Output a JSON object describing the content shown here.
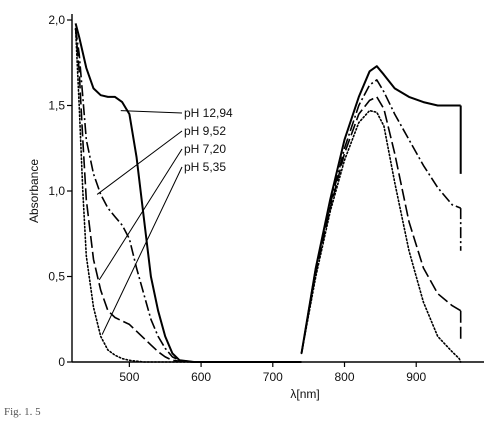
{
  "chart_data": {
    "type": "line",
    "title": "",
    "caption_text": "Fig. 1. 5",
    "xlabel": "λ[nm]",
    "ylabel": "Absorbance",
    "xlim": [
      420,
      975
    ],
    "ylim": [
      0,
      2.0
    ],
    "x_ticks": [
      500,
      600,
      700,
      800,
      900
    ],
    "x_tick_labels": [
      "500",
      "600",
      "700",
      "800",
      "900"
    ],
    "y_ticks": [
      0,
      0.5,
      1.0,
      1.5,
      2.0
    ],
    "y_tick_labels": [
      "0",
      "0,5",
      "1,0",
      "1,5",
      "2,0"
    ],
    "grid": false,
    "legend_position": "center-left, leader lines to curves",
    "series": [
      {
        "name": "pH 12,94",
        "dash": "solid",
        "width": 2.0,
        "segments": [
          [
            [
              425,
              1.98
            ],
            [
              430,
              1.9
            ],
            [
              440,
              1.72
            ],
            [
              450,
              1.6
            ],
            [
              460,
              1.56
            ],
            [
              470,
              1.55
            ],
            [
              480,
              1.55
            ],
            [
              490,
              1.52
            ],
            [
              500,
              1.45
            ],
            [
              510,
              1.2
            ],
            [
              520,
              0.85
            ],
            [
              530,
              0.5
            ],
            [
              540,
              0.3
            ],
            [
              550,
              0.15
            ],
            [
              560,
              0.05
            ],
            [
              570,
              0.01
            ],
            [
              590,
              0
            ],
            [
              740,
              0
            ]
          ],
          [
            [
              740,
              0.05
            ],
            [
              760,
              0.55
            ],
            [
              780,
              0.95
            ],
            [
              800,
              1.3
            ],
            [
              820,
              1.55
            ],
            [
              835,
              1.7
            ],
            [
              845,
              1.73
            ],
            [
              855,
              1.68
            ],
            [
              870,
              1.6
            ],
            [
              890,
              1.55
            ],
            [
              910,
              1.52
            ],
            [
              930,
              1.5
            ],
            [
              950,
              1.5
            ],
            [
              962,
              1.5
            ]
          ],
          [
            [
              962,
              1.5
            ],
            [
              962,
              1.1
            ]
          ]
        ]
      },
      {
        "name": "pH 9,52",
        "dash": "long-dash-dot",
        "width": 1.6,
        "segments": [
          [
            [
              425,
              1.95
            ],
            [
              430,
              1.8
            ],
            [
              435,
              1.55
            ],
            [
              440,
              1.3
            ],
            [
              450,
              1.1
            ],
            [
              460,
              0.98
            ],
            [
              470,
              0.9
            ],
            [
              480,
              0.85
            ],
            [
              490,
              0.8
            ],
            [
              500,
              0.72
            ],
            [
              510,
              0.55
            ],
            [
              520,
              0.4
            ],
            [
              530,
              0.25
            ],
            [
              540,
              0.15
            ],
            [
              550,
              0.08
            ],
            [
              560,
              0.03
            ],
            [
              570,
              0.01
            ],
            [
              590,
              0
            ],
            [
              740,
              0
            ]
          ],
          [
            [
              740,
              0.05
            ],
            [
              760,
              0.55
            ],
            [
              780,
              0.92
            ],
            [
              800,
              1.25
            ],
            [
              820,
              1.5
            ],
            [
              835,
              1.62
            ],
            [
              845,
              1.65
            ],
            [
              855,
              1.58
            ],
            [
              870,
              1.45
            ],
            [
              890,
              1.3
            ],
            [
              910,
              1.15
            ],
            [
              930,
              1.02
            ],
            [
              950,
              0.92
            ],
            [
              962,
              0.9
            ]
          ],
          [
            [
              962,
              0.9
            ],
            [
              962,
              0.65
            ]
          ]
        ]
      },
      {
        "name": "pH 7,20",
        "dash": "long-dash",
        "width": 1.6,
        "segments": [
          [
            [
              425,
              1.95
            ],
            [
              430,
              1.7
            ],
            [
              435,
              1.3
            ],
            [
              440,
              0.95
            ],
            [
              450,
              0.6
            ],
            [
              460,
              0.42
            ],
            [
              470,
              0.3
            ],
            [
              480,
              0.26
            ],
            [
              490,
              0.24
            ],
            [
              500,
              0.22
            ],
            [
              510,
              0.18
            ],
            [
              520,
              0.14
            ],
            [
              530,
              0.1
            ],
            [
              540,
              0.06
            ],
            [
              550,
              0.03
            ],
            [
              560,
              0.01
            ],
            [
              580,
              0
            ],
            [
              740,
              0
            ]
          ],
          [
            [
              740,
              0.05
            ],
            [
              760,
              0.52
            ],
            [
              780,
              0.9
            ],
            [
              800,
              1.22
            ],
            [
              820,
              1.45
            ],
            [
              835,
              1.53
            ],
            [
              845,
              1.55
            ],
            [
              855,
              1.48
            ],
            [
              870,
              1.22
            ],
            [
              890,
              0.82
            ],
            [
              910,
              0.55
            ],
            [
              930,
              0.4
            ],
            [
              950,
              0.33
            ],
            [
              962,
              0.3
            ]
          ],
          [
            [
              962,
              0.3
            ],
            [
              962,
              0.12
            ]
          ]
        ]
      },
      {
        "name": "pH 5,35",
        "dash": "dotted",
        "width": 1.6,
        "segments": [
          [
            [
              425,
              1.95
            ],
            [
              430,
              1.5
            ],
            [
              435,
              1.0
            ],
            [
              440,
              0.62
            ],
            [
              450,
              0.32
            ],
            [
              460,
              0.15
            ],
            [
              470,
              0.07
            ],
            [
              480,
              0.04
            ],
            [
              490,
              0.02
            ],
            [
              500,
              0.01
            ],
            [
              520,
              0
            ],
            [
              740,
              0
            ]
          ],
          [
            [
              740,
              0.05
            ],
            [
              760,
              0.5
            ],
            [
              780,
              0.88
            ],
            [
              800,
              1.18
            ],
            [
              820,
              1.4
            ],
            [
              835,
              1.47
            ],
            [
              845,
              1.46
            ],
            [
              855,
              1.38
            ],
            [
              870,
              1.05
            ],
            [
              890,
              0.65
            ],
            [
              910,
              0.35
            ],
            [
              930,
              0.15
            ],
            [
              950,
              0.06
            ],
            [
              960,
              0.02
            ],
            [
              962,
              0
            ]
          ]
        ]
      }
    ],
    "legend_entries": [
      {
        "label": "pH 12,94",
        "leader_to": [
          488,
          1.47
        ]
      },
      {
        "label": "pH 9,52",
        "leader_to": [
          455,
          0.98
        ]
      },
      {
        "label": "pH 7,20",
        "leader_to": [
          458,
          0.48
        ]
      },
      {
        "label": "pH 5,35",
        "leader_to": [
          462,
          0.16
        ]
      }
    ]
  }
}
